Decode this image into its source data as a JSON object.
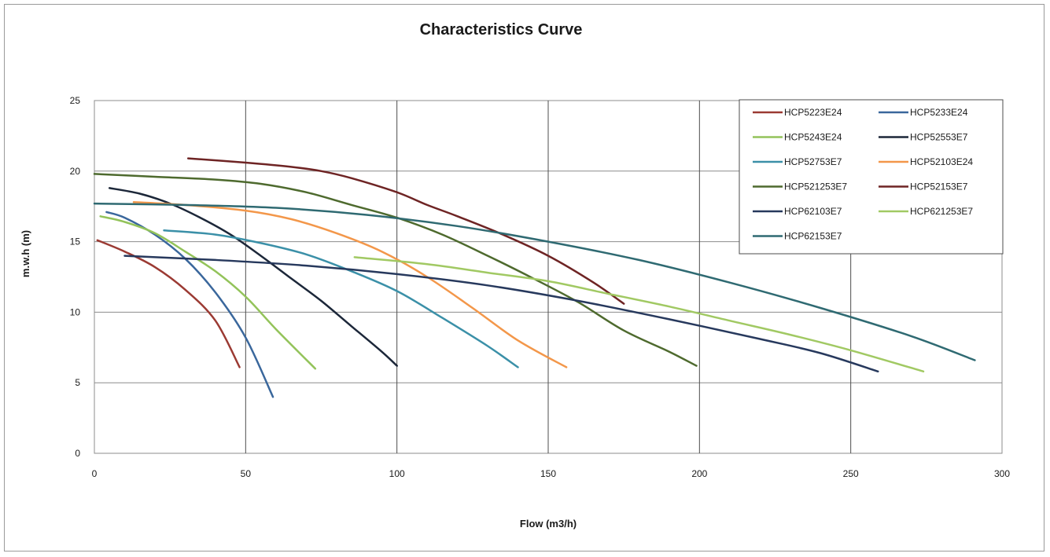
{
  "chart_data": {
    "type": "line",
    "title": "Characteristics Curve",
    "xlabel": "Flow (m3/h)",
    "ylabel": "m.w.h (m)",
    "xlim": [
      0,
      300
    ],
    "ylim": [
      0,
      25
    ],
    "xticks": [
      0,
      50,
      100,
      150,
      200,
      250,
      300
    ],
    "yticks": [
      0,
      5,
      10,
      15,
      20,
      25
    ],
    "grid": true,
    "legend_position": "top-right",
    "series": [
      {
        "name": "HCP5223E24",
        "color": "#9b3a33",
        "points": [
          [
            1,
            15.1
          ],
          [
            10,
            14.3
          ],
          [
            20,
            13.2
          ],
          [
            30,
            11.6
          ],
          [
            40,
            9.4
          ],
          [
            48,
            6.1
          ]
        ]
      },
      {
        "name": "HCP5233E24",
        "color": "#3a679c",
        "points": [
          [
            4,
            17.1
          ],
          [
            10,
            16.7
          ],
          [
            20,
            15.5
          ],
          [
            30,
            13.8
          ],
          [
            40,
            11.4
          ],
          [
            50,
            8.2
          ],
          [
            59,
            4.0
          ]
        ]
      },
      {
        "name": "HCP5243E24",
        "color": "#93c35a",
        "points": [
          [
            2,
            16.8
          ],
          [
            10,
            16.4
          ],
          [
            20,
            15.6
          ],
          [
            30,
            14.3
          ],
          [
            40,
            12.9
          ],
          [
            50,
            11.1
          ],
          [
            60,
            8.8
          ],
          [
            73,
            6.0
          ]
        ]
      },
      {
        "name": "HCP52553E7",
        "color": "#1c2739",
        "points": [
          [
            5,
            18.8
          ],
          [
            15,
            18.4
          ],
          [
            25,
            17.7
          ],
          [
            35,
            16.7
          ],
          [
            45,
            15.5
          ],
          [
            55,
            14.0
          ],
          [
            65,
            12.4
          ],
          [
            75,
            10.8
          ],
          [
            85,
            9.0
          ],
          [
            95,
            7.2
          ],
          [
            100,
            6.2
          ]
        ]
      },
      {
        "name": "HCP52753E7",
        "color": "#3b90a8",
        "points": [
          [
            23,
            15.8
          ],
          [
            40,
            15.5
          ],
          [
            55,
            14.9
          ],
          [
            70,
            14.1
          ],
          [
            85,
            12.9
          ],
          [
            100,
            11.5
          ],
          [
            115,
            9.6
          ],
          [
            130,
            7.6
          ],
          [
            140,
            6.1
          ]
        ]
      },
      {
        "name": "HCP52103E24",
        "color": "#f3974a",
        "points": [
          [
            13,
            17.8
          ],
          [
            30,
            17.6
          ],
          [
            50,
            17.2
          ],
          [
            65,
            16.6
          ],
          [
            80,
            15.6
          ],
          [
            95,
            14.3
          ],
          [
            110,
            12.5
          ],
          [
            125,
            10.3
          ],
          [
            140,
            8.0
          ],
          [
            156,
            6.1
          ]
        ]
      },
      {
        "name": "HCP521253E7",
        "color": "#4e6a2e",
        "points": [
          [
            0,
            19.8
          ],
          [
            20,
            19.6
          ],
          [
            40,
            19.4
          ],
          [
            55,
            19.1
          ],
          [
            70,
            18.5
          ],
          [
            85,
            17.6
          ],
          [
            100,
            16.7
          ],
          [
            115,
            15.5
          ],
          [
            130,
            14.0
          ],
          [
            145,
            12.4
          ],
          [
            160,
            10.7
          ],
          [
            175,
            8.7
          ],
          [
            190,
            7.2
          ],
          [
            199,
            6.2
          ]
        ]
      },
      {
        "name": "HCP52153E7",
        "color": "#6e2424",
        "points": [
          [
            31,
            20.9
          ],
          [
            50,
            20.6
          ],
          [
            65,
            20.3
          ],
          [
            75,
            20.0
          ],
          [
            85,
            19.5
          ],
          [
            100,
            18.5
          ],
          [
            110,
            17.6
          ],
          [
            120,
            16.8
          ],
          [
            135,
            15.5
          ],
          [
            150,
            14.0
          ],
          [
            165,
            12.1
          ],
          [
            175,
            10.6
          ]
        ]
      },
      {
        "name": "HCP62103E7",
        "color": "#27395d",
        "points": [
          [
            10,
            14.0
          ],
          [
            40,
            13.7
          ],
          [
            70,
            13.3
          ],
          [
            100,
            12.7
          ],
          [
            130,
            11.9
          ],
          [
            160,
            10.8
          ],
          [
            190,
            9.5
          ],
          [
            220,
            8.1
          ],
          [
            240,
            7.1
          ],
          [
            259,
            5.8
          ]
        ]
      },
      {
        "name": "HCP621253E7",
        "color": "#a1c963",
        "points": [
          [
            86,
            13.9
          ],
          [
            110,
            13.4
          ],
          [
            130,
            12.8
          ],
          [
            150,
            12.2
          ],
          [
            170,
            11.3
          ],
          [
            190,
            10.4
          ],
          [
            210,
            9.4
          ],
          [
            230,
            8.4
          ],
          [
            250,
            7.3
          ],
          [
            274,
            5.8
          ]
        ]
      },
      {
        "name": "HCP62153E7",
        "color": "#2f6a72",
        "points": [
          [
            0,
            17.7
          ],
          [
            30,
            17.6
          ],
          [
            60,
            17.4
          ],
          [
            90,
            16.9
          ],
          [
            120,
            16.1
          ],
          [
            150,
            15.0
          ],
          [
            180,
            13.7
          ],
          [
            210,
            12.1
          ],
          [
            240,
            10.3
          ],
          [
            270,
            8.3
          ],
          [
            291,
            6.6
          ]
        ]
      }
    ]
  }
}
